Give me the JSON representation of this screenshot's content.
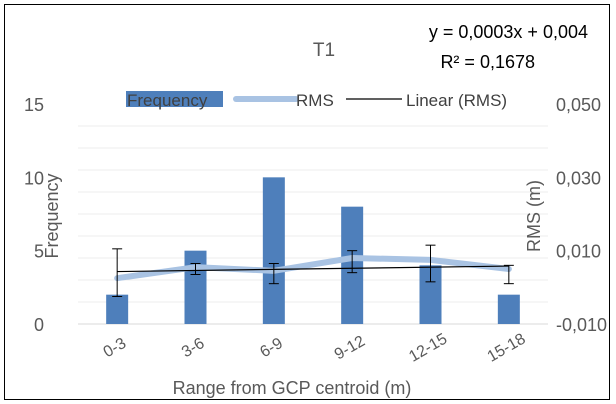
{
  "chart_data": {
    "type": "bar",
    "title": "T1",
    "equation": "y = 0,0003x + 0,004",
    "r_squared": "R² = 0,1678",
    "categories": [
      "0-3",
      "3-6",
      "6-9",
      "9-12",
      "12-15",
      "15-18"
    ],
    "xlabel": "Range from GCP centroid (m)",
    "ylabel_left": "Frequency",
    "ylabel_right": "RMS (m)",
    "ylim_left": [
      0,
      15
    ],
    "yticks_left": [
      "0",
      "5",
      "10",
      "15"
    ],
    "ylim_right": [
      -0.01,
      0.05
    ],
    "yticks_right": [
      "-0,010",
      "0,010",
      "0,030",
      "0,050"
    ],
    "grid": true,
    "legend_position": "top",
    "series": [
      {
        "name": "Frequency",
        "kind": "bar",
        "color": "#4e7fbb",
        "values": [
          2,
          5,
          10,
          8,
          4,
          2
        ]
      },
      {
        "name": "RMS",
        "kind": "line",
        "axis": "right",
        "color": "#a9c3e3",
        "values": [
          0.0025,
          0.0055,
          0.0045,
          0.008,
          0.0075,
          0.005
        ],
        "error_high": [
          0.0105,
          0.0065,
          0.0065,
          0.01,
          0.0115,
          0.006
        ],
        "error_low": [
          -0.0025,
          0.0035,
          0.001,
          0.004,
          0.0015,
          0.001
        ]
      },
      {
        "name": "Linear (RMS)",
        "kind": "trendline",
        "axis": "right",
        "color": "#000000",
        "slope": 0.0003,
        "intercept": 0.004
      }
    ]
  }
}
